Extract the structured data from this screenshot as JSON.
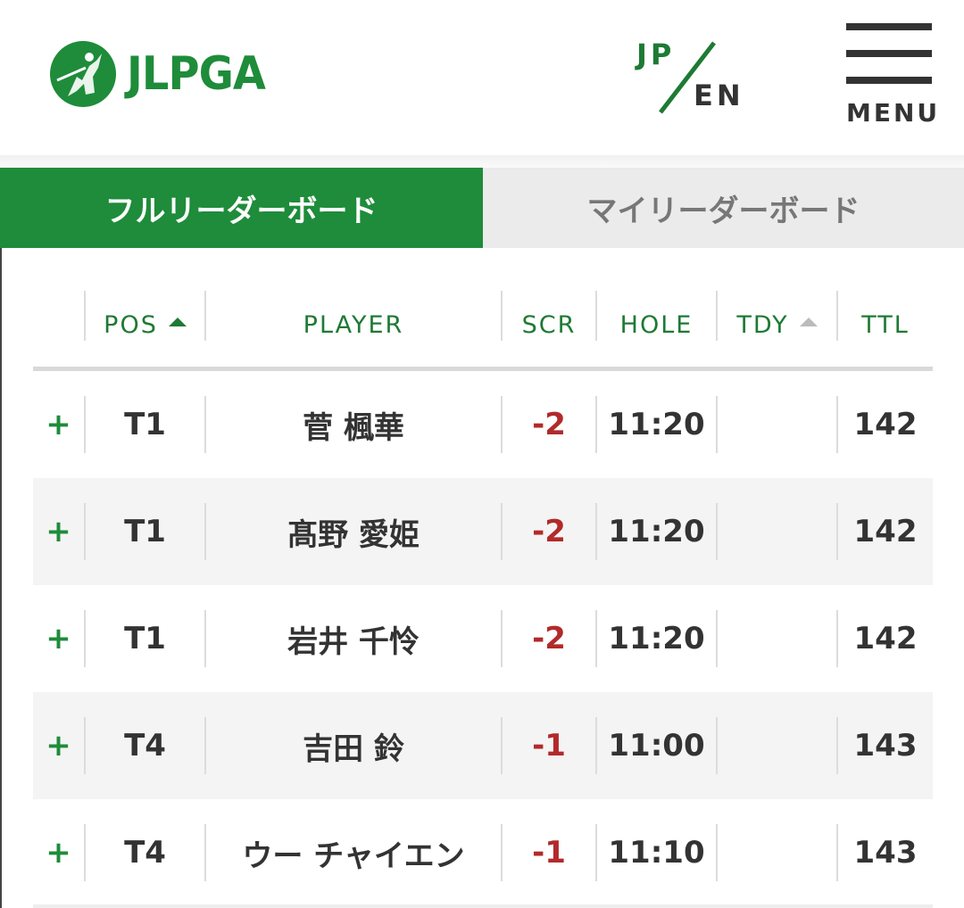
{
  "header": {
    "logo_text": "JLPGA",
    "lang_jp": "JP",
    "lang_en": "EN",
    "menu_label": "MENU"
  },
  "tabs": [
    {
      "label": "フルリーダーボード",
      "active": true
    },
    {
      "label": "マイリーダーボード",
      "active": false
    }
  ],
  "columns": {
    "pos": "POS",
    "player": "PLAYER",
    "scr": "SCR",
    "hole": "HOLE",
    "tdy": "TDY",
    "ttl": "TTL"
  },
  "rows": [
    {
      "expand": "+",
      "pos": "T1",
      "player": "菅 楓華",
      "scr": "-2",
      "hole": "11:20",
      "tdy": "",
      "ttl": "142"
    },
    {
      "expand": "+",
      "pos": "T1",
      "player": "髙野 愛姫",
      "scr": "-2",
      "hole": "11:20",
      "tdy": "",
      "ttl": "142"
    },
    {
      "expand": "+",
      "pos": "T1",
      "player": "岩井 千怜",
      "scr": "-2",
      "hole": "11:20",
      "tdy": "",
      "ttl": "142"
    },
    {
      "expand": "+",
      "pos": "T4",
      "player": "吉田 鈴",
      "scr": "-1",
      "hole": "11:00",
      "tdy": "",
      "ttl": "143"
    },
    {
      "expand": "+",
      "pos": "T4",
      "player": "ウー チャイエン",
      "scr": "-1",
      "hole": "11:10",
      "tdy": "",
      "ttl": "143"
    }
  ],
  "colors": {
    "brand_green": "#1e8c3a",
    "score_red": "#b22a2a",
    "tab_inactive_bg": "#ebebeb",
    "alt_row_bg": "#f4f4f4"
  }
}
